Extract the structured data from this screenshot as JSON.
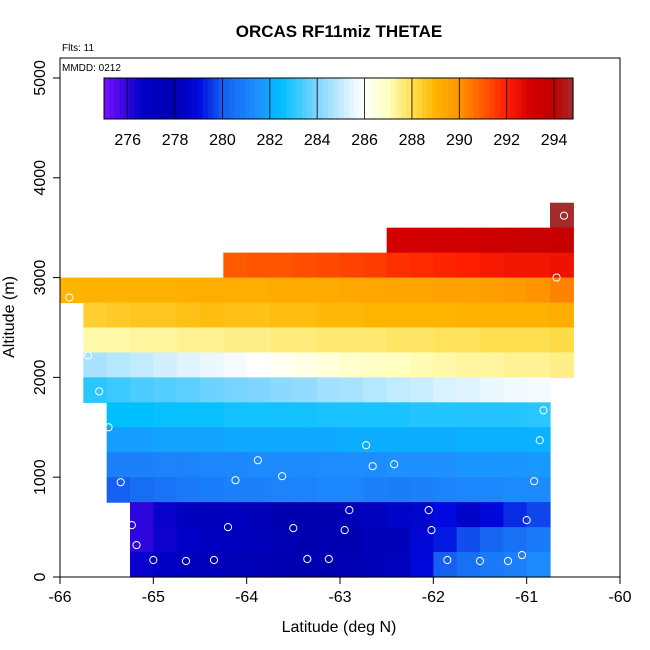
{
  "chart_data": {
    "type": "heatmap",
    "title": "ORCAS RF11miz THETAE",
    "xlabel": "Latitude (deg N)",
    "ylabel": "Altitude (m)",
    "xlim": [
      -66,
      -60
    ],
    "ylim": [
      0,
      5200
    ],
    "x_ticks": [
      -66,
      -65,
      -64,
      -63,
      -62,
      -61,
      -60
    ],
    "x_tick_labels": [
      "-66",
      "-65",
      "-64",
      "-63",
      "-62",
      "-61",
      "-60"
    ],
    "y_ticks": [
      0,
      1000,
      2000,
      3000,
      4000,
      5000
    ],
    "y_tick_labels": [
      "0",
      "1000",
      "2000",
      "3000",
      "4000",
      "5000"
    ],
    "annotations": [
      "Flts: 11",
      "MMDD: 0212"
    ],
    "colorbar": {
      "range": [
        275.0,
        294.8
      ],
      "ticks": [
        276,
        278,
        280,
        282,
        284,
        286,
        288,
        290,
        292,
        294
      ],
      "tick_labels": [
        "276",
        "278",
        "280",
        "282",
        "284",
        "286",
        "288",
        "290",
        "292",
        "294"
      ],
      "stops": [
        [
          275.0,
          "#7a10ff"
        ],
        [
          276.6,
          "#0000c8"
        ],
        [
          278.0,
          "#0000b0"
        ],
        [
          279.0,
          "#0008e0"
        ],
        [
          280.0,
          "#1560f0"
        ],
        [
          281.5,
          "#1e90ff"
        ],
        [
          282.5,
          "#00bfff"
        ],
        [
          284.0,
          "#7ed5ff"
        ],
        [
          285.5,
          "#e6f6ff"
        ],
        [
          286.0,
          "#ffffff"
        ],
        [
          287.0,
          "#ffffbf"
        ],
        [
          288.0,
          "#ffdf50"
        ],
        [
          289.0,
          "#ffb400"
        ],
        [
          290.0,
          "#ff9400"
        ],
        [
          291.0,
          "#ff5a00"
        ],
        [
          292.0,
          "#ff1e00"
        ],
        [
          293.0,
          "#d40000"
        ],
        [
          294.0,
          "#c00000"
        ],
        [
          294.8,
          "#a52a2a"
        ]
      ]
    },
    "cell_dlat": 0.25,
    "layers": [
      {
        "alt_bottom": 3500,
        "alt_top": 3750,
        "lat_start": -60.75,
        "values": [
          294.8
        ]
      },
      {
        "alt_bottom": 3250,
        "alt_top": 3500,
        "lat_start": -62.5,
        "values": [
          293.0,
          293.1,
          293.2,
          293.3,
          293.4,
          293.5,
          293.6,
          293.7
        ]
      },
      {
        "alt_bottom": 3000,
        "alt_top": 3250,
        "lat_start": -64.25,
        "values": [
          291.0,
          291.1,
          291.1,
          291.2,
          291.3,
          291.4,
          291.5,
          291.7,
          291.8,
          291.9,
          292.0,
          292.2,
          292.3,
          292.3,
          292.4
        ]
      },
      {
        "alt_bottom": 2750,
        "alt_top": 3000,
        "lat_start": -66.0,
        "values": [
          289.0,
          289.05,
          289.1,
          289.1,
          289.1,
          289.15,
          289.2,
          289.2,
          289.2,
          289.3,
          289.3,
          289.3,
          289.4,
          289.4,
          289.5,
          289.5,
          289.6,
          289.6,
          289.7,
          289.8,
          290.0,
          290.3
        ]
      },
      {
        "alt_bottom": 2500,
        "alt_top": 2750,
        "lat_start": -65.75,
        "values": [
          288.4,
          288.5,
          288.6,
          288.6,
          288.7,
          288.8,
          288.7,
          288.7,
          288.8,
          288.8,
          288.9,
          288.9,
          289.0,
          289.0,
          289.0,
          289.0,
          289.1,
          289.1,
          289.1,
          289.1,
          289.2
        ]
      },
      {
        "alt_bottom": 2250,
        "alt_top": 2500,
        "lat_start": -65.75,
        "values": [
          287.2,
          287.2,
          287.3,
          287.3,
          287.4,
          287.4,
          287.5,
          287.5,
          287.6,
          287.6,
          287.7,
          287.7,
          287.7,
          287.8,
          287.8,
          287.9,
          287.9,
          288.0,
          288.0,
          288.0,
          288.1
        ]
      },
      {
        "alt_bottom": 2000,
        "alt_top": 2250,
        "lat_start": -65.75,
        "values": [
          284.6,
          284.8,
          285.0,
          285.2,
          285.4,
          285.6,
          285.8,
          286.0,
          286.2,
          286.4,
          286.6,
          286.8,
          286.9,
          287.0,
          287.1,
          287.2,
          287.3,
          287.3,
          287.4,
          287.4,
          287.5
        ]
      },
      {
        "alt_bottom": 1750,
        "alt_top": 2000,
        "lat_start": -65.75,
        "values": [
          283.0,
          283.2,
          283.4,
          283.5,
          283.6,
          283.8,
          283.9,
          284.0,
          284.2,
          284.3,
          284.5,
          284.6,
          284.8,
          285.0,
          285.1,
          285.3,
          285.4,
          285.6,
          285.7,
          285.8
        ]
      },
      {
        "alt_bottom": 1500,
        "alt_top": 1750,
        "lat_start": -65.5,
        "values": [
          282.5,
          282.5,
          282.6,
          282.6,
          282.6,
          282.7,
          282.7,
          282.7,
          282.7,
          282.8,
          282.8,
          282.8,
          282.8,
          282.9,
          282.9,
          282.9,
          282.9,
          282.9,
          283.0
        ]
      },
      {
        "alt_bottom": 1250,
        "alt_top": 1500,
        "lat_start": -65.5,
        "values": [
          281.8,
          281.8,
          281.9,
          281.9,
          281.9,
          282.0,
          282.0,
          282.0,
          282.0,
          282.0,
          282.1,
          282.1,
          282.1,
          282.1,
          282.1,
          282.2,
          282.2,
          282.2,
          282.2
        ]
      },
      {
        "alt_bottom": 1000,
        "alt_top": 1250,
        "lat_start": -65.5,
        "values": [
          281.0,
          281.0,
          281.1,
          281.1,
          281.2,
          281.2,
          281.3,
          281.3,
          281.3,
          281.4,
          281.4,
          281.4,
          281.5,
          281.5,
          281.5,
          281.6,
          281.6,
          281.6,
          281.7
        ]
      },
      {
        "alt_bottom": 750,
        "alt_top": 1000,
        "lat_start": -65.5,
        "values": [
          280.0,
          280.4,
          280.6,
          280.8,
          280.9,
          281.0,
          281.0,
          281.1,
          281.1,
          281.2,
          281.2,
          281.0,
          280.9,
          281.0,
          281.1,
          281.2,
          281.2,
          281.3,
          281.3
        ]
      },
      {
        "alt_bottom": 500,
        "alt_top": 750,
        "lat_start": -65.25,
        "values": [
          276.0,
          276.5,
          277.0,
          277.3,
          277.2,
          277.5,
          278.0,
          277.8,
          278.0,
          278.2,
          278.3,
          278.5,
          278.6,
          279.0,
          278.5,
          278.9,
          279.4,
          279.7
        ]
      },
      {
        "alt_bottom": 250,
        "alt_top": 500,
        "lat_start": -65.25,
        "values": [
          276.0,
          276.4,
          276.6,
          276.9,
          277.1,
          277.4,
          277.7,
          278.0,
          277.8,
          278.0,
          278.2,
          278.2,
          278.8,
          279.2,
          279.8,
          280.2,
          280.5,
          280.8
        ]
      },
      {
        "alt_bottom": 0,
        "alt_top": 250,
        "lat_start": -65.25,
        "values": [
          276.5,
          276.8,
          277.1,
          277.3,
          277.5,
          277.7,
          277.8,
          277.9,
          278.0,
          278.1,
          278.2,
          278.3,
          278.9,
          280.0,
          280.5,
          280.8,
          281.0,
          281.3
        ]
      }
    ],
    "points": [
      {
        "lat": -65.9,
        "alt": 2800
      },
      {
        "lat": -65.7,
        "alt": 2220
      },
      {
        "lat": -65.58,
        "alt": 1860
      },
      {
        "lat": -65.48,
        "alt": 1500
      },
      {
        "lat": -65.35,
        "alt": 950
      },
      {
        "lat": -65.23,
        "alt": 520
      },
      {
        "lat": -65.18,
        "alt": 320
      },
      {
        "lat": -65.0,
        "alt": 170
      },
      {
        "lat": -64.65,
        "alt": 160
      },
      {
        "lat": -64.35,
        "alt": 170
      },
      {
        "lat": -64.2,
        "alt": 500
      },
      {
        "lat": -64.12,
        "alt": 970
      },
      {
        "lat": -63.88,
        "alt": 1170
      },
      {
        "lat": -63.62,
        "alt": 1010
      },
      {
        "lat": -63.5,
        "alt": 490
      },
      {
        "lat": -63.35,
        "alt": 180
      },
      {
        "lat": -63.12,
        "alt": 180
      },
      {
        "lat": -62.95,
        "alt": 470
      },
      {
        "lat": -62.9,
        "alt": 670
      },
      {
        "lat": -62.72,
        "alt": 1320
      },
      {
        "lat": -62.65,
        "alt": 1110
      },
      {
        "lat": -62.42,
        "alt": 1130
      },
      {
        "lat": -62.05,
        "alt": 670
      },
      {
        "lat": -62.02,
        "alt": 470
      },
      {
        "lat": -61.85,
        "alt": 170
      },
      {
        "lat": -61.5,
        "alt": 160
      },
      {
        "lat": -61.2,
        "alt": 160
      },
      {
        "lat": -61.05,
        "alt": 220
      },
      {
        "lat": -61.0,
        "alt": 570
      },
      {
        "lat": -60.92,
        "alt": 960
      },
      {
        "lat": -60.86,
        "alt": 1370
      },
      {
        "lat": -60.82,
        "alt": 1670
      },
      {
        "lat": -60.68,
        "alt": 3000
      },
      {
        "lat": -60.6,
        "alt": 3620
      }
    ]
  }
}
